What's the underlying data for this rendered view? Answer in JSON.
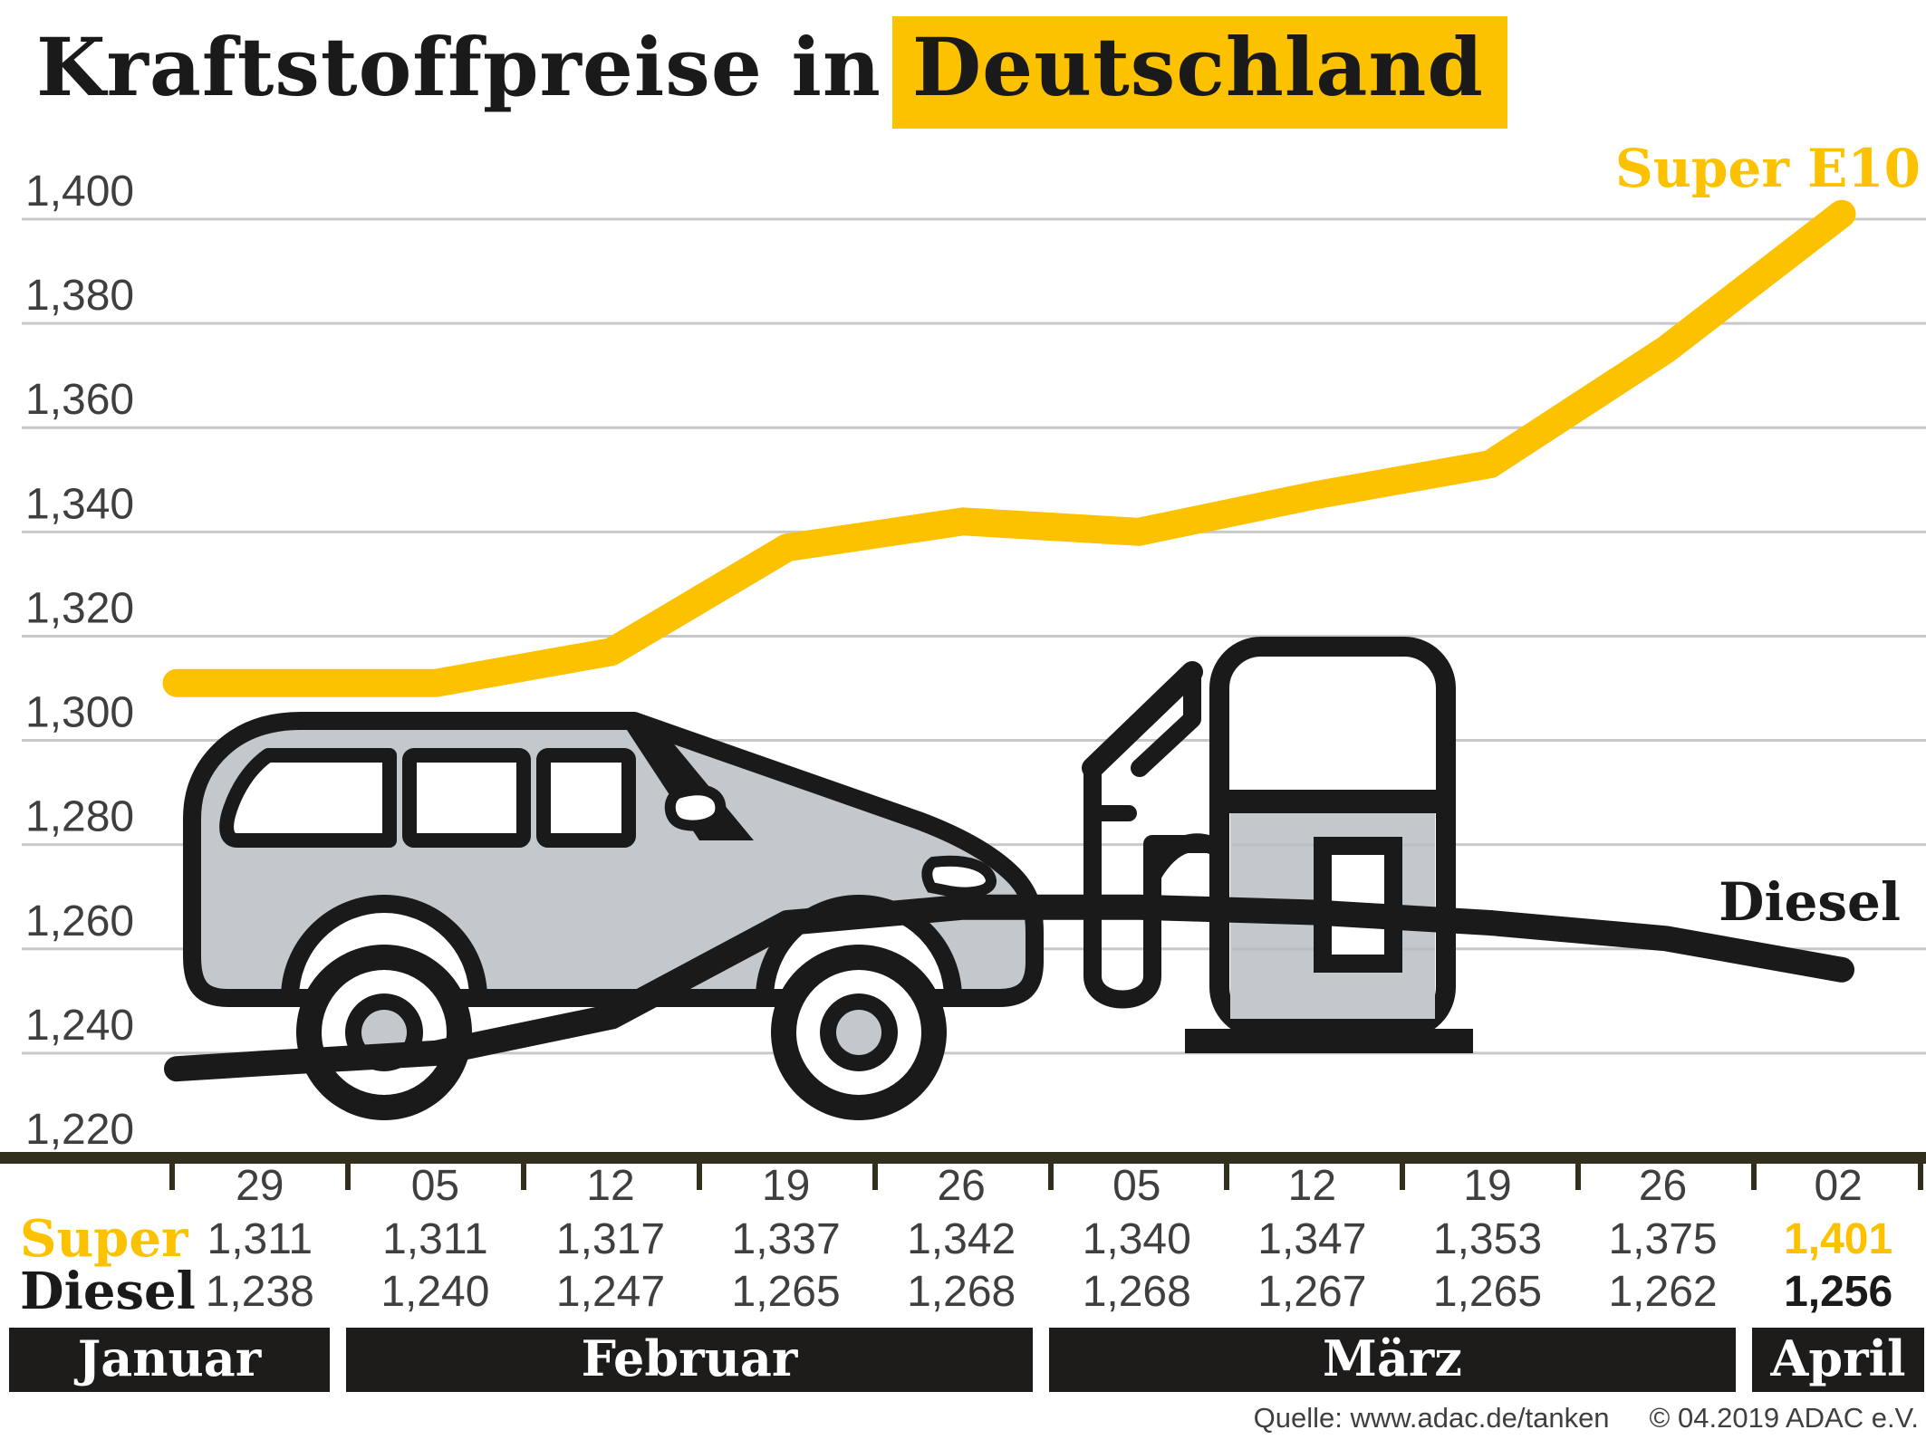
{
  "title": {
    "part1": "Kraftstoffpreise in",
    "highlight": "Deutschland"
  },
  "annotations": {
    "super_e10": "Super E10",
    "diesel": "Diesel"
  },
  "chart_data": {
    "type": "line",
    "x_categories": [
      "29",
      "05",
      "12",
      "19",
      "26",
      "05",
      "12",
      "19",
      "26",
      "02"
    ],
    "series": [
      {
        "name": "Super E10",
        "color_key": "yellow",
        "values": [
          1311,
          1311,
          1317,
          1337,
          1342,
          1340,
          1347,
          1353,
          1375,
          1401
        ]
      },
      {
        "name": "Diesel",
        "color_key": "ink",
        "values": [
          1238,
          1240,
          1247,
          1265,
          1268,
          1268,
          1267,
          1265,
          1262,
          1256
        ]
      }
    ],
    "ylim": [
      1220,
      1400
    ],
    "ytick_step": 20,
    "ytick_labels": [
      "1,220",
      "1,240",
      "1,260",
      "1,280",
      "1,300",
      "1,320",
      "1,340",
      "1,360",
      "1,380",
      "1,400"
    ],
    "grid": true,
    "legend": "line-end-labels",
    "months": [
      {
        "label": "Januar",
        "weeks": 1
      },
      {
        "label": "Februar",
        "weeks": 4
      },
      {
        "label": "März",
        "weeks": 4
      },
      {
        "label": "April",
        "weeks": 1
      }
    ]
  },
  "table": {
    "super_label": "Super",
    "diesel_label": "Diesel",
    "dates": [
      "29",
      "05",
      "12",
      "19",
      "26",
      "05",
      "12",
      "19",
      "26",
      "02"
    ],
    "super_values": [
      "1,311",
      "1,311",
      "1,317",
      "1,337",
      "1,342",
      "1,340",
      "1,347",
      "1,353",
      "1,375",
      "1,401"
    ],
    "diesel_values": [
      "1,238",
      "1,240",
      "1,247",
      "1,265",
      "1,268",
      "1,268",
      "1,267",
      "1,265",
      "1,262",
      "1,256"
    ]
  },
  "source": {
    "quelle": "Quelle: www.adac.de/tanken",
    "copyright": "© 04.2019  ADAC e.V."
  },
  "colors": {
    "yellow": "#fcc200",
    "ink": "#1a1a1a",
    "car_gray": "#c3c8cd",
    "grid_gray": "#c8c8c8",
    "axis_olive": "#32301d",
    "band_bg": "#1d1c1a",
    "value_gray": "#3f3f3f",
    "bg": "#ffffff"
  }
}
